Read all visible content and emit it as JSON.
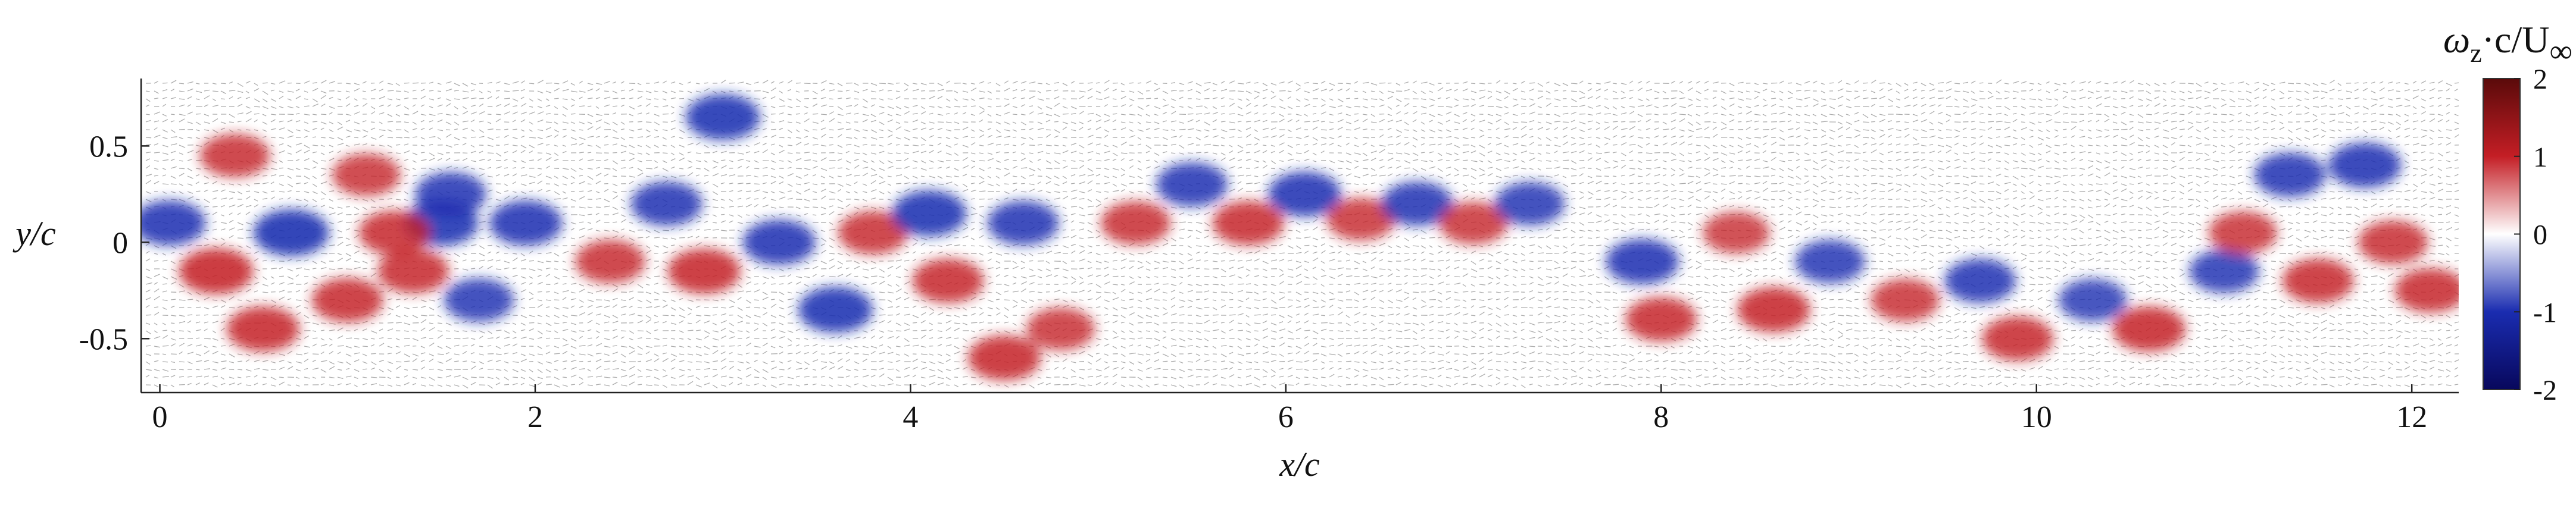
{
  "chart_data": {
    "type": "heatmap",
    "xlabel": "x/c",
    "ylabel": "y/c",
    "xlim": [
      -0.1,
      12.25
    ],
    "ylim": [
      -0.78,
      0.85
    ],
    "x_ticks": [
      0,
      2,
      4,
      6,
      8,
      10,
      12
    ],
    "x_tick_labels": [
      "0",
      "2",
      "4",
      "6",
      "8",
      "10",
      "12"
    ],
    "y_ticks": [
      0.5,
      0,
      -0.5
    ],
    "y_tick_labels": [
      "0.5",
      "0",
      "-0.5"
    ],
    "grid": false,
    "overlay": "velocity vector field (quiver arrows)",
    "colorbar": {
      "title": "ω_z·c/U_∞",
      "title_parts": {
        "omega": "ω",
        "z": "z",
        "rest": "·c/U",
        "inf": "∞"
      },
      "range": [
        -2,
        2
      ],
      "ticks": [
        2,
        1,
        0,
        -1,
        -2
      ],
      "tick_labels": [
        "2",
        "1",
        "0",
        "-1",
        "-2"
      ],
      "colormap": [
        "#08085c",
        "#1a2cb0",
        "#ffffff",
        "#c41e25",
        "#5a0a0a"
      ],
      "placement": "right"
    },
    "vorticity_blobs": [
      {
        "x": 0.05,
        "y": 0.1,
        "v": -1.7
      },
      {
        "x": 0.3,
        "y": -0.15,
        "v": 1.8
      },
      {
        "x": 0.4,
        "y": 0.45,
        "v": 1.5
      },
      {
        "x": 0.7,
        "y": 0.05,
        "v": -1.9
      },
      {
        "x": 0.55,
        "y": -0.45,
        "v": 1.7
      },
      {
        "x": 1.0,
        "y": -0.3,
        "v": 1.6
      },
      {
        "x": 1.1,
        "y": 0.35,
        "v": 1.4
      },
      {
        "x": 1.35,
        "y": -0.15,
        "v": 1.6
      },
      {
        "x": 1.5,
        "y": 0.1,
        "v": -1.8
      },
      {
        "x": 1.25,
        "y": 0.05,
        "v": 1.6
      },
      {
        "x": 1.7,
        "y": -0.3,
        "v": -1.5
      },
      {
        "x": 1.95,
        "y": 0.1,
        "v": -1.7
      },
      {
        "x": 1.55,
        "y": 0.25,
        "v": -1.6
      },
      {
        "x": 2.4,
        "y": -0.1,
        "v": 1.5
      },
      {
        "x": 2.7,
        "y": 0.2,
        "v": -1.6
      },
      {
        "x": 3.0,
        "y": 0.65,
        "v": -1.8
      },
      {
        "x": 2.9,
        "y": -0.15,
        "v": 1.7
      },
      {
        "x": 3.3,
        "y": 0.0,
        "v": -1.7
      },
      {
        "x": 3.6,
        "y": -0.35,
        "v": -1.8
      },
      {
        "x": 3.8,
        "y": 0.05,
        "v": 1.5
      },
      {
        "x": 4.1,
        "y": 0.15,
        "v": -1.8
      },
      {
        "x": 4.2,
        "y": -0.2,
        "v": 1.6
      },
      {
        "x": 4.5,
        "y": -0.6,
        "v": 1.7
      },
      {
        "x": 4.6,
        "y": 0.1,
        "v": -1.6
      },
      {
        "x": 4.8,
        "y": -0.45,
        "v": 1.4
      },
      {
        "x": 5.2,
        "y": 0.1,
        "v": 1.5
      },
      {
        "x": 5.5,
        "y": 0.3,
        "v": -1.6
      },
      {
        "x": 5.8,
        "y": 0.1,
        "v": 1.6
      },
      {
        "x": 6.1,
        "y": 0.25,
        "v": -1.7
      },
      {
        "x": 6.4,
        "y": 0.12,
        "v": 1.4
      },
      {
        "x": 6.7,
        "y": 0.2,
        "v": -1.6
      },
      {
        "x": 7.0,
        "y": 0.1,
        "v": 1.4
      },
      {
        "x": 7.3,
        "y": 0.2,
        "v": -1.5
      },
      {
        "x": 7.9,
        "y": -0.1,
        "v": -1.7
      },
      {
        "x": 8.0,
        "y": -0.4,
        "v": 1.6
      },
      {
        "x": 8.4,
        "y": 0.05,
        "v": 1.3
      },
      {
        "x": 8.6,
        "y": -0.35,
        "v": 1.7
      },
      {
        "x": 8.9,
        "y": -0.1,
        "v": -1.5
      },
      {
        "x": 9.3,
        "y": -0.3,
        "v": 1.4
      },
      {
        "x": 9.7,
        "y": -0.2,
        "v": -1.6
      },
      {
        "x": 9.9,
        "y": -0.5,
        "v": 1.6
      },
      {
        "x": 10.3,
        "y": -0.3,
        "v": -1.4
      },
      {
        "x": 10.6,
        "y": -0.45,
        "v": 1.7
      },
      {
        "x": 11.0,
        "y": -0.15,
        "v": -1.5
      },
      {
        "x": 11.1,
        "y": 0.05,
        "v": 1.4
      },
      {
        "x": 11.35,
        "y": 0.35,
        "v": -1.6
      },
      {
        "x": 11.5,
        "y": -0.2,
        "v": 1.6
      },
      {
        "x": 11.75,
        "y": 0.4,
        "v": -1.7
      },
      {
        "x": 11.9,
        "y": 0.0,
        "v": 1.5
      },
      {
        "x": 12.1,
        "y": -0.25,
        "v": 1.6
      }
    ]
  }
}
